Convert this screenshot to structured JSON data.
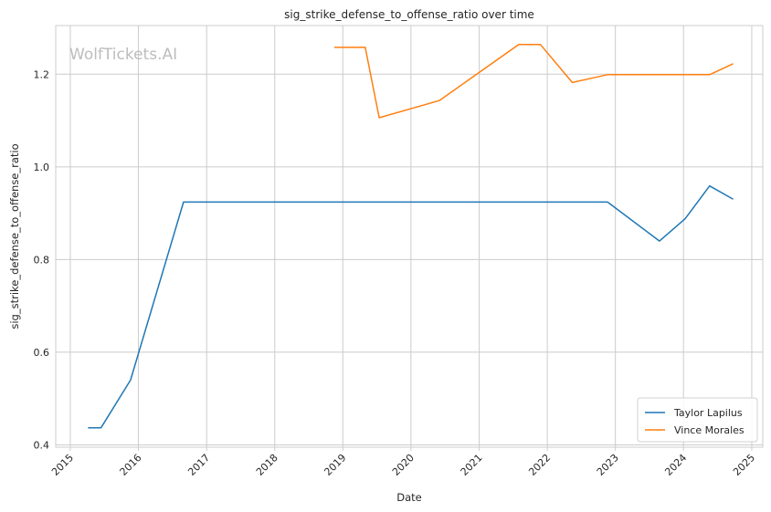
{
  "chart_data": {
    "type": "line",
    "title": "sig_strike_defense_to_offense_ratio over time",
    "xlabel": "Date",
    "ylabel": "sig_strike_defense_to_offense_ratio",
    "xlim": [
      "2014-10-15",
      "2025-03-01"
    ],
    "ylim": [
      0.395,
      1.305
    ],
    "x_ticks": [
      "2015",
      "2016",
      "2017",
      "2018",
      "2019",
      "2020",
      "2021",
      "2022",
      "2023",
      "2024",
      "2025"
    ],
    "y_ticks": [
      "0.4",
      "0.6",
      "0.8",
      "1.0",
      "1.2"
    ],
    "grid": true,
    "legend_position": "bottom-right",
    "watermark": "WolfTickets.AI",
    "series": [
      {
        "name": "Taylor Lapilus",
        "color": "#1f77b4",
        "points": [
          [
            "2015-04-10",
            0.437
          ],
          [
            "2015-06-15",
            0.437
          ],
          [
            "2015-11-20",
            0.54
          ],
          [
            "2016-08-30",
            0.924
          ],
          [
            "2022-11-20",
            0.924
          ],
          [
            "2023-08-25",
            0.84
          ],
          [
            "2024-01-10",
            0.888
          ],
          [
            "2024-05-20",
            0.959
          ],
          [
            "2024-09-20",
            0.931
          ]
        ]
      },
      {
        "name": "Vince Morales",
        "color": "#ff7f0e",
        "points": [
          [
            "2018-11-20",
            1.258
          ],
          [
            "2019-05-01",
            1.258
          ],
          [
            "2019-07-15",
            1.106
          ],
          [
            "2020-06-01",
            1.143
          ],
          [
            "2021-08-01",
            1.264
          ],
          [
            "2021-11-25",
            1.264
          ],
          [
            "2022-05-15",
            1.182
          ],
          [
            "2022-11-20",
            1.199
          ],
          [
            "2024-05-20",
            1.199
          ],
          [
            "2024-09-20",
            1.222
          ]
        ]
      }
    ]
  }
}
